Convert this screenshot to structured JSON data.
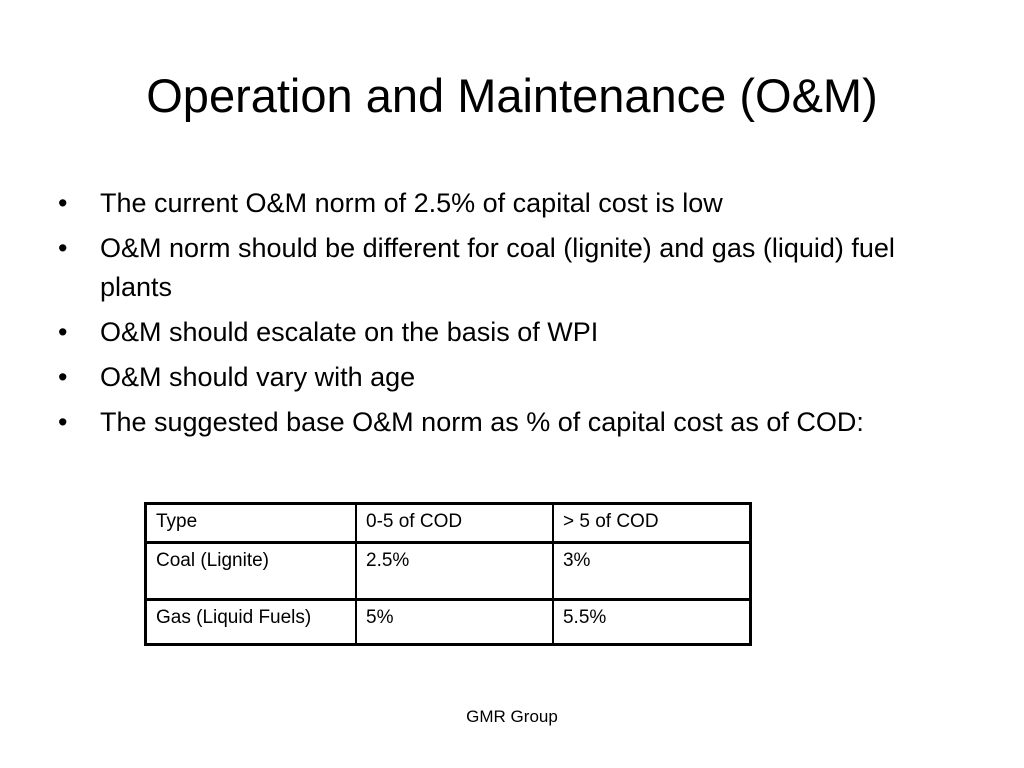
{
  "slide": {
    "title": "Operation and Maintenance (O&M)",
    "bullet_symbol": "•",
    "bullets": [
      "The current O&M norm of 2.5% of capital cost is low",
      "O&M norm should be different for coal (lignite) and gas (liquid) fuel plants",
      "O&M should escalate on the basis of WPI",
      "O&M should vary with age",
      "The suggested base O&M norm as % of capital cost as of COD:"
    ],
    "table": {
      "headers": [
        "Type",
        "0-5 of COD",
        "> 5 of COD"
      ],
      "rows": [
        [
          "Coal (Lignite)",
          "2.5%",
          "3%"
        ],
        [
          "Gas (Liquid Fuels)",
          "5%",
          "5.5%"
        ]
      ]
    },
    "footer": "GMR Group"
  }
}
